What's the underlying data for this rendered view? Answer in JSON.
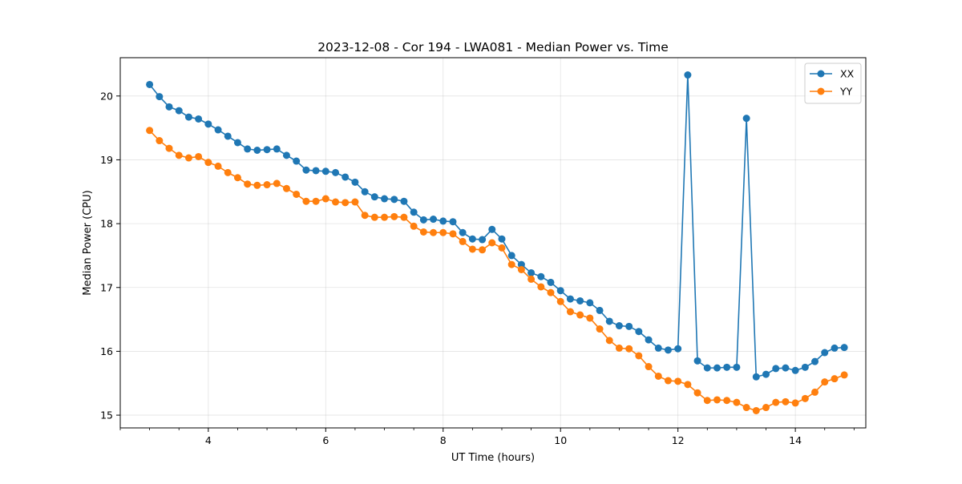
{
  "chart_data": {
    "type": "line",
    "title": "2023-12-08 - Cor 194 - LWA081 - Median Power vs. Time",
    "xlabel": "UT Time (hours)",
    "ylabel": "Median Power (CPU)",
    "xlim": [
      2.5,
      15.2
    ],
    "ylim": [
      14.8,
      20.6
    ],
    "xticks": [
      4,
      6,
      8,
      10,
      12,
      14
    ],
    "xtick_labels": [
      "4",
      "6",
      "8",
      "10",
      "12",
      "14"
    ],
    "yticks": [
      15,
      16,
      17,
      18,
      19,
      20
    ],
    "ytick_labels": [
      "15",
      "16",
      "17",
      "18",
      "19",
      "20"
    ],
    "grid": true,
    "legend_position": "top-right",
    "x": [
      3.0,
      3.167,
      3.333,
      3.5,
      3.667,
      3.833,
      4.0,
      4.167,
      4.333,
      4.5,
      4.667,
      4.833,
      5.0,
      5.167,
      5.333,
      5.5,
      5.667,
      5.833,
      6.0,
      6.167,
      6.333,
      6.5,
      6.667,
      6.833,
      7.0,
      7.167,
      7.333,
      7.5,
      7.667,
      7.833,
      8.0,
      8.167,
      8.333,
      8.5,
      8.667,
      8.833,
      9.0,
      9.167,
      9.333,
      9.5,
      9.667,
      9.833,
      10.0,
      10.167,
      10.333,
      10.5,
      10.667,
      10.833,
      11.0,
      11.167,
      11.333,
      11.5,
      11.667,
      11.833,
      12.0,
      12.167,
      12.333,
      12.5,
      12.667,
      12.833,
      13.0,
      13.167,
      13.333,
      13.5,
      13.667,
      13.833,
      14.0,
      14.167,
      14.333,
      14.5,
      14.667,
      14.833
    ],
    "series": [
      {
        "name": "XX",
        "color": "#1f77b4",
        "values": [
          20.18,
          19.99,
          19.83,
          19.77,
          19.67,
          19.64,
          19.56,
          19.47,
          19.37,
          19.27,
          19.17,
          19.15,
          19.16,
          19.17,
          19.07,
          18.98,
          18.84,
          18.83,
          18.82,
          18.8,
          18.73,
          18.65,
          18.5,
          18.42,
          18.39,
          18.38,
          18.35,
          18.18,
          18.06,
          18.07,
          18.04,
          18.03,
          17.86,
          17.76,
          17.75,
          17.91,
          17.76,
          17.5,
          17.36,
          17.23,
          17.17,
          17.08,
          16.95,
          16.82,
          16.79,
          16.76,
          16.64,
          16.47,
          16.4,
          16.39,
          16.31,
          16.18,
          16.05,
          16.02,
          16.04,
          20.33,
          15.85,
          15.74,
          15.74,
          15.75,
          15.75,
          19.65,
          15.6,
          15.64,
          15.73,
          15.74,
          15.7,
          15.75,
          15.84,
          15.98,
          16.05,
          16.06
        ]
      },
      {
        "name": "YY",
        "color": "#ff7f0e",
        "values": [
          19.46,
          19.3,
          19.18,
          19.07,
          19.03,
          19.05,
          18.96,
          18.9,
          18.8,
          18.72,
          18.62,
          18.6,
          18.61,
          18.63,
          18.55,
          18.46,
          18.35,
          18.35,
          18.39,
          18.34,
          18.33,
          18.34,
          18.13,
          18.1,
          18.1,
          18.11,
          18.1,
          17.96,
          17.87,
          17.86,
          17.86,
          17.84,
          17.72,
          17.6,
          17.59,
          17.7,
          17.62,
          17.36,
          17.28,
          17.13,
          17.01,
          16.92,
          16.78,
          16.62,
          16.57,
          16.52,
          16.35,
          16.17,
          16.05,
          16.04,
          15.93,
          15.76,
          15.61,
          15.54,
          15.53,
          15.48,
          15.35,
          15.23,
          15.24,
          15.23,
          15.2,
          15.12,
          15.07,
          15.12,
          15.2,
          15.21,
          15.19,
          15.26,
          15.36,
          15.52,
          15.57,
          15.63
        ]
      }
    ]
  }
}
